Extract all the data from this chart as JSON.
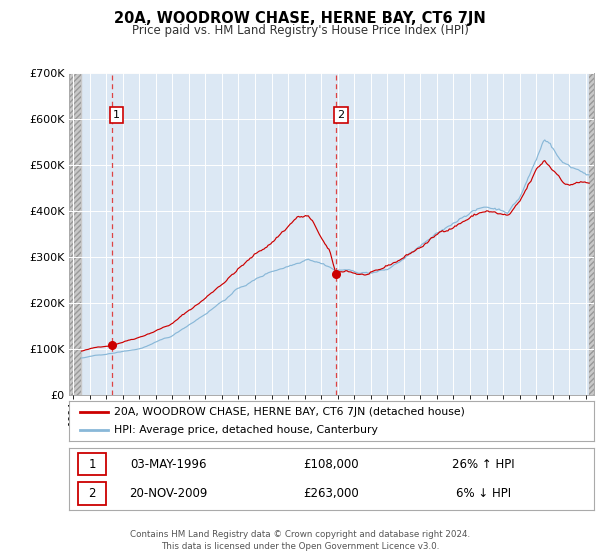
{
  "title": "20A, WOODROW CHASE, HERNE BAY, CT6 7JN",
  "subtitle": "Price paid vs. HM Land Registry's House Price Index (HPI)",
  "ylim": [
    0,
    700000
  ],
  "yticks": [
    0,
    100000,
    200000,
    300000,
    400000,
    500000,
    600000,
    700000
  ],
  "xlim_start": 1993.75,
  "xlim_end": 2025.5,
  "sale1_date": 1996.35,
  "sale1_price": 108000,
  "sale2_date": 2009.9,
  "sale2_price": 263000,
  "sale1_info": "03-MAY-1996",
  "sale1_price_str": "£108,000",
  "sale1_hpi": "26% ↑ HPI",
  "sale2_info": "20-NOV-2009",
  "sale2_price_str": "£263,000",
  "sale2_hpi": "6% ↓ HPI",
  "hpi_line_color": "#89b8d8",
  "price_line_color": "#cc0000",
  "marker_color": "#cc0000",
  "dashed_line_color": "#dd4444",
  "plot_bg_color": "#dce8f4",
  "legend_label_price": "20A, WOODROW CHASE, HERNE BAY, CT6 7JN (detached house)",
  "legend_label_hpi": "HPI: Average price, detached house, Canterbury",
  "footer_text1": "Contains HM Land Registry data © Crown copyright and database right 2024.",
  "footer_text2": "This data is licensed under the Open Government Licence v3.0."
}
